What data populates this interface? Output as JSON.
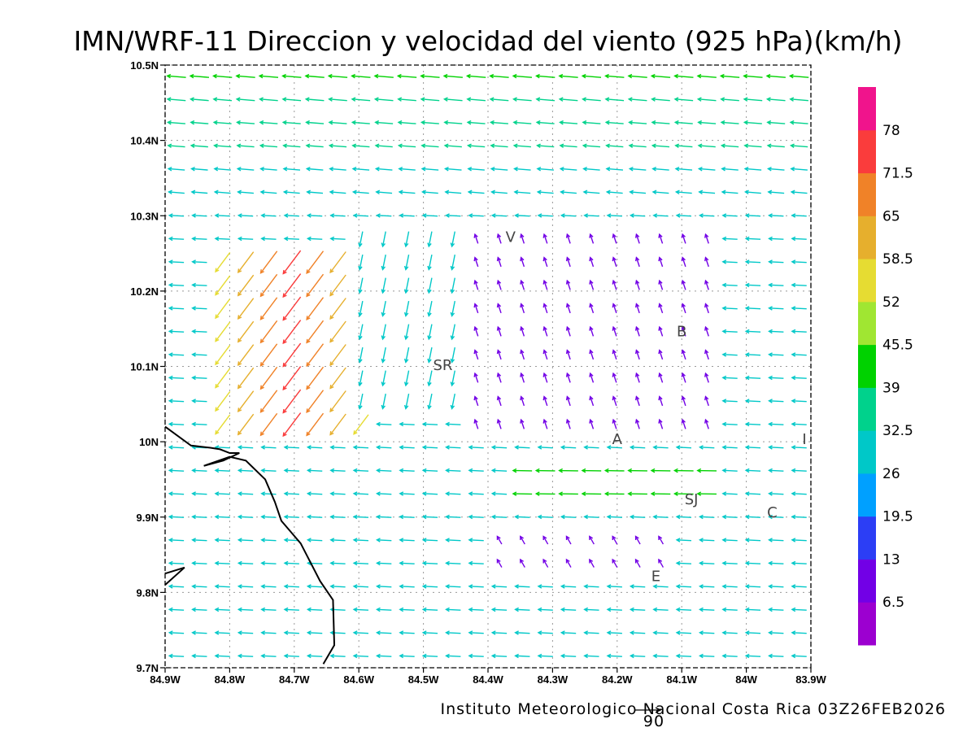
{
  "title": "IMN/WRF-11 Direccion y velocidad del viento (925 hPa)(km/h)",
  "footer": "Instituto Meteorologico Nacional Costa Rica 03Z26FEB2026",
  "reference_vector_label": "90",
  "map": {
    "lon_range": [
      -84.9,
      -83.9
    ],
    "lat_range": [
      9.7,
      10.5
    ],
    "x_ticks": [
      {
        "value": -84.9,
        "label": "84.9W"
      },
      {
        "value": -84.8,
        "label": "84.8W"
      },
      {
        "value": -84.7,
        "label": "84.7W"
      },
      {
        "value": -84.6,
        "label": "84.6W"
      },
      {
        "value": -84.5,
        "label": "84.5W"
      },
      {
        "value": -84.4,
        "label": "84.4W"
      },
      {
        "value": -84.3,
        "label": "84.3W"
      },
      {
        "value": -84.2,
        "label": "84.2W"
      },
      {
        "value": -84.1,
        "label": "84.1W"
      },
      {
        "value": -84.0,
        "label": "84W"
      },
      {
        "value": -83.9,
        "label": "83.9W"
      }
    ],
    "y_ticks": [
      {
        "value": 9.7,
        "label": "9.7N"
      },
      {
        "value": 9.8,
        "label": "9.8N"
      },
      {
        "value": 9.9,
        "label": "9.9N"
      },
      {
        "value": 10.0,
        "label": "10N"
      },
      {
        "value": 10.1,
        "label": "10.1N"
      },
      {
        "value": 10.2,
        "label": "10.2N"
      },
      {
        "value": 10.3,
        "label": "10.3N"
      },
      {
        "value": 10.4,
        "label": "10.4N"
      },
      {
        "value": 10.5,
        "label": "10.5N"
      }
    ],
    "grid": true,
    "city_labels": [
      {
        "label": "V",
        "lon": -84.365,
        "lat": 10.265
      },
      {
        "label": "SR",
        "lon": -84.47,
        "lat": 10.095
      },
      {
        "label": "B",
        "lon": -84.1,
        "lat": 10.14
      },
      {
        "label": "A",
        "lon": -84.2,
        "lat": 9.997
      },
      {
        "label": "I",
        "lon": -83.91,
        "lat": 9.997
      },
      {
        "label": "SJ",
        "lon": -84.085,
        "lat": 9.917
      },
      {
        "label": "C",
        "lon": -83.96,
        "lat": 9.9
      },
      {
        "label": "E",
        "lon": -84.14,
        "lat": 9.815
      }
    ],
    "coastline": [
      [
        -84.9,
        10.02
      ],
      [
        -84.86,
        9.995
      ],
      [
        -84.83,
        9.992
      ],
      [
        -84.815,
        9.99
      ],
      [
        -84.8,
        9.985
      ],
      [
        -84.785,
        9.985
      ],
      [
        -84.81,
        9.975
      ],
      [
        -84.84,
        9.968
      ],
      [
        -84.8,
        9.98
      ],
      [
        -84.775,
        9.975
      ],
      [
        -84.745,
        9.95
      ],
      [
        -84.73,
        9.92
      ],
      [
        -84.72,
        9.895
      ],
      [
        -84.705,
        9.88
      ],
      [
        -84.69,
        9.865
      ],
      [
        -84.675,
        9.84
      ],
      [
        -84.66,
        9.815
      ],
      [
        -84.64,
        9.79
      ],
      [
        -84.638,
        9.73
      ],
      [
        -84.655,
        9.705
      ]
    ],
    "coastline2": [
      [
        -84.9,
        9.825
      ],
      [
        -84.87,
        9.833
      ],
      [
        -84.9,
        9.81
      ]
    ]
  },
  "colorbar": {
    "colors": [
      "#9c00d0",
      "#7200e6",
      "#2c3ef5",
      "#00a0ff",
      "#00c8c8",
      "#00d28c",
      "#00d200",
      "#a0e632",
      "#e6dc32",
      "#e6af2d",
      "#f08228",
      "#fa3c3c",
      "#f0148c"
    ],
    "labels": [
      "6.5",
      "13",
      "19.5",
      "26",
      "32.5",
      "39",
      "45.5",
      "52",
      "58.5",
      "65",
      "71.5",
      "78"
    ]
  }
}
